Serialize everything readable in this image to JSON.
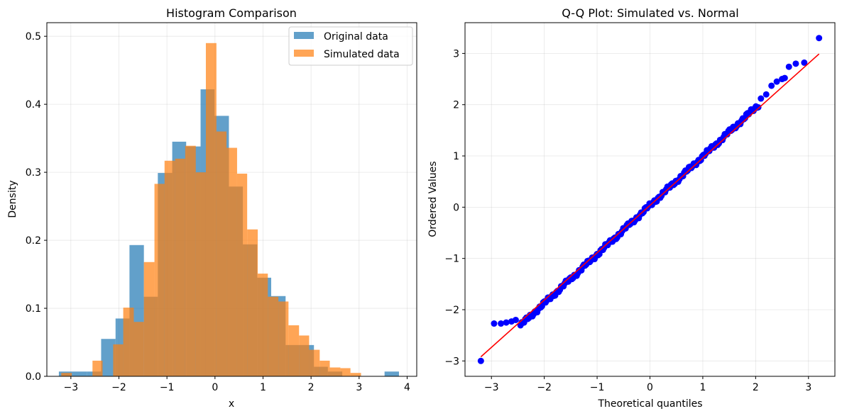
{
  "chart_data": [
    {
      "type": "bar",
      "subtype": "histogram",
      "title": "Histogram Comparison",
      "xlabel": "x",
      "ylabel": "Density",
      "xlim": [
        -3.5,
        4.2
      ],
      "ylim": [
        0,
        0.52
      ],
      "xticks": [
        -3,
        -2,
        -1,
        0,
        1,
        2,
        3,
        4
      ],
      "xtick_labels": [
        "−3",
        "−2",
        "−1",
        "0",
        "1",
        "2",
        "3",
        "4"
      ],
      "yticks": [
        0.0,
        0.1,
        0.2,
        0.3,
        0.4,
        0.5
      ],
      "ytick_labels": [
        "0.0",
        "0.1",
        "0.2",
        "0.3",
        "0.4",
        "0.5"
      ],
      "grid": true,
      "legend_position": "top-right",
      "series": [
        {
          "name": "Original data",
          "color": "#1f77b4",
          "opacity": 0.7,
          "bin_edges": [
            -3.25,
            -2.96,
            -2.66,
            -2.37,
            -2.07,
            -1.78,
            -1.48,
            -1.19,
            -0.89,
            -0.6,
            -0.3,
            -0.01,
            0.29,
            0.58,
            0.88,
            1.17,
            1.47,
            1.76,
            2.06,
            2.35,
            2.65,
            2.94,
            3.24,
            3.53,
            3.83
          ],
          "values": [
            0.007,
            0.007,
            0.007,
            0.055,
            0.085,
            0.193,
            0.117,
            0.299,
            0.345,
            0.338,
            0.422,
            0.383,
            0.279,
            0.194,
            0.145,
            0.118,
            0.046,
            0.046,
            0.014,
            0.007,
            0.0,
            0.0,
            0.0,
            0.007
          ]
        },
        {
          "name": "Simulated data",
          "color": "#ff7f0e",
          "opacity": 0.7,
          "bin_edges": [
            -3.2,
            -2.98,
            -2.77,
            -2.55,
            -2.34,
            -2.12,
            -1.91,
            -1.69,
            -1.48,
            -1.26,
            -1.05,
            -0.83,
            -0.62,
            -0.4,
            -0.19,
            0.03,
            0.24,
            0.46,
            0.67,
            0.89,
            1.1,
            1.32,
            1.53,
            1.75,
            1.96,
            2.18,
            2.39,
            2.61,
            2.82,
            3.04,
            3.25
          ],
          "values": [
            0.005,
            0.0,
            0.0,
            0.023,
            0.0,
            0.047,
            0.101,
            0.08,
            0.168,
            0.283,
            0.317,
            0.32,
            0.339,
            0.3,
            0.49,
            0.36,
            0.336,
            0.298,
            0.216,
            0.151,
            0.117,
            0.11,
            0.075,
            0.06,
            0.039,
            0.023,
            0.013,
            0.012,
            0.005,
            0.0
          ]
        }
      ]
    },
    {
      "type": "scatter",
      "title": "Q-Q Plot: Simulated vs. Normal",
      "xlabel": "Theoretical quantiles",
      "ylabel": "Ordered Values",
      "xlim": [
        -3.5,
        3.5
      ],
      "ylim": [
        -3.3,
        3.6
      ],
      "xticks": [
        -3,
        -2,
        -1,
        0,
        1,
        2,
        3
      ],
      "xtick_labels": [
        "−3",
        "−2",
        "−1",
        "0",
        "1",
        "2",
        "3"
      ],
      "yticks": [
        -3,
        -2,
        -1,
        0,
        1,
        2,
        3
      ],
      "ytick_labels": [
        "−3",
        "−2",
        "−1",
        "0",
        "1",
        "2",
        "3"
      ],
      "grid": true,
      "points_color": "#0000ff",
      "line_color": "#ff0000",
      "fit_line": {
        "x": [
          -3.2,
          3.2
        ],
        "y": [
          -2.92,
          2.99
        ]
      },
      "series": [
        {
          "outliers": [
            [
              -3.2,
              -3.0
            ],
            [
              -2.95,
              -2.27
            ],
            [
              -2.82,
              -2.27
            ],
            [
              -2.72,
              -2.25
            ],
            [
              -2.62,
              -2.23
            ],
            [
              -2.54,
              -2.2
            ],
            [
              2.63,
              2.74
            ],
            [
              2.76,
              2.8
            ],
            [
              2.92,
              2.82
            ],
            [
              3.2,
              3.3
            ]
          ],
          "upper_tail": [
            [
              2.1,
              2.12
            ],
            [
              2.2,
              2.2
            ],
            [
              2.3,
              2.37
            ],
            [
              2.4,
              2.45
            ],
            [
              2.5,
              2.5
            ],
            [
              2.55,
              2.52
            ]
          ],
          "bulk": {
            "from": -2.45,
            "to": 2.05,
            "count": 200,
            "slope": 0.955,
            "intercept": 0.035
          }
        }
      ]
    }
  ]
}
